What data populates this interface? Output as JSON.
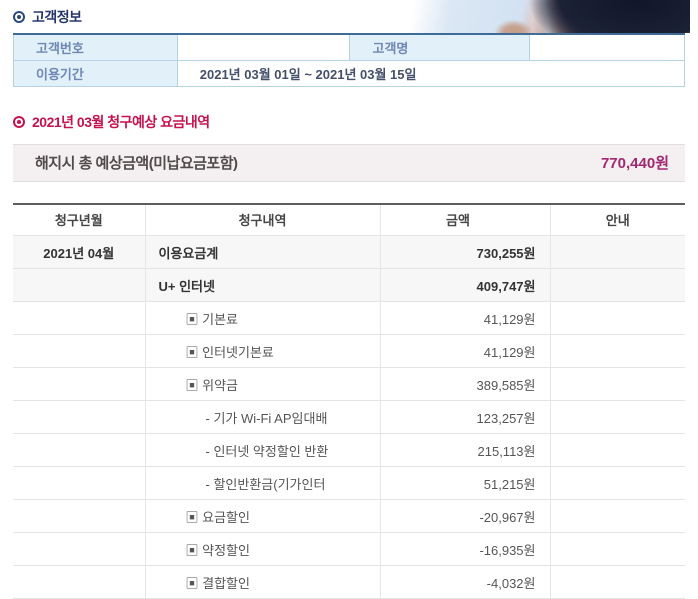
{
  "colors": {
    "accent_navy": "#26366b",
    "accent_red": "#c6134e",
    "amount_magenta": "#a3276f",
    "label_blue": "#6e87b5",
    "label_bg_blue": "#e2f0f9"
  },
  "customer": {
    "title": "고객정보",
    "customer_no_label": "고객번호",
    "customer_no_value": "",
    "customer_name_label": "고객명",
    "customer_name_value": "",
    "period_label": "이용기간",
    "period_value": "2021년 03월 01일 ~ 2021년 03월 15일"
  },
  "billing": {
    "title": "2021년 03월 청구예상 요금내역",
    "summary": {
      "label": "해지시 총 예상금액(미납요금포함)",
      "amount": "770,440원"
    },
    "table": {
      "headers": [
        "청구년월",
        "청구내역",
        "금액",
        "안내"
      ],
      "rows": [
        {
          "month": "2021년 04월",
          "item": "이용요금계",
          "amount": "730,255원",
          "info": "",
          "indent": 0,
          "bold": true,
          "shaded": true
        },
        {
          "month": "",
          "item": "U+ 인터넷",
          "amount": "409,747원",
          "info": "",
          "indent": 0,
          "bold": true,
          "shaded": true
        },
        {
          "month": "",
          "item": "▣ 기본료",
          "amount": "41,129원",
          "info": "",
          "indent": 1,
          "bold": false,
          "shaded": false
        },
        {
          "month": "",
          "item": "▣ 인터넷기본료",
          "amount": "41,129원",
          "info": "",
          "indent": 1,
          "bold": false,
          "shaded": false
        },
        {
          "month": "",
          "item": "▣ 위약금",
          "amount": "389,585원",
          "info": "",
          "indent": 1,
          "bold": false,
          "shaded": false
        },
        {
          "month": "",
          "item": "- 기가 Wi-Fi AP임대배",
          "amount": "123,257원",
          "info": "",
          "indent": 2,
          "bold": false,
          "shaded": false
        },
        {
          "month": "",
          "item": "- 인터넷 약정할인 반환",
          "amount": "215,113원",
          "info": "",
          "indent": 2,
          "bold": false,
          "shaded": false
        },
        {
          "month": "",
          "item": "- 할인반환금(기가인터",
          "amount": "51,215원",
          "info": "",
          "indent": 2,
          "bold": false,
          "shaded": false
        },
        {
          "month": "",
          "item": "▣ 요금할인",
          "amount": "-20,967원",
          "info": "",
          "indent": 1,
          "bold": false,
          "shaded": false
        },
        {
          "month": "",
          "item": "▣ 약정할인",
          "amount": "-16,935원",
          "info": "",
          "indent": 1,
          "bold": false,
          "shaded": false
        },
        {
          "month": "",
          "item": "▣ 결합할인",
          "amount": "-4,032원",
          "info": "",
          "indent": 1,
          "bold": false,
          "shaded": false
        }
      ]
    }
  }
}
